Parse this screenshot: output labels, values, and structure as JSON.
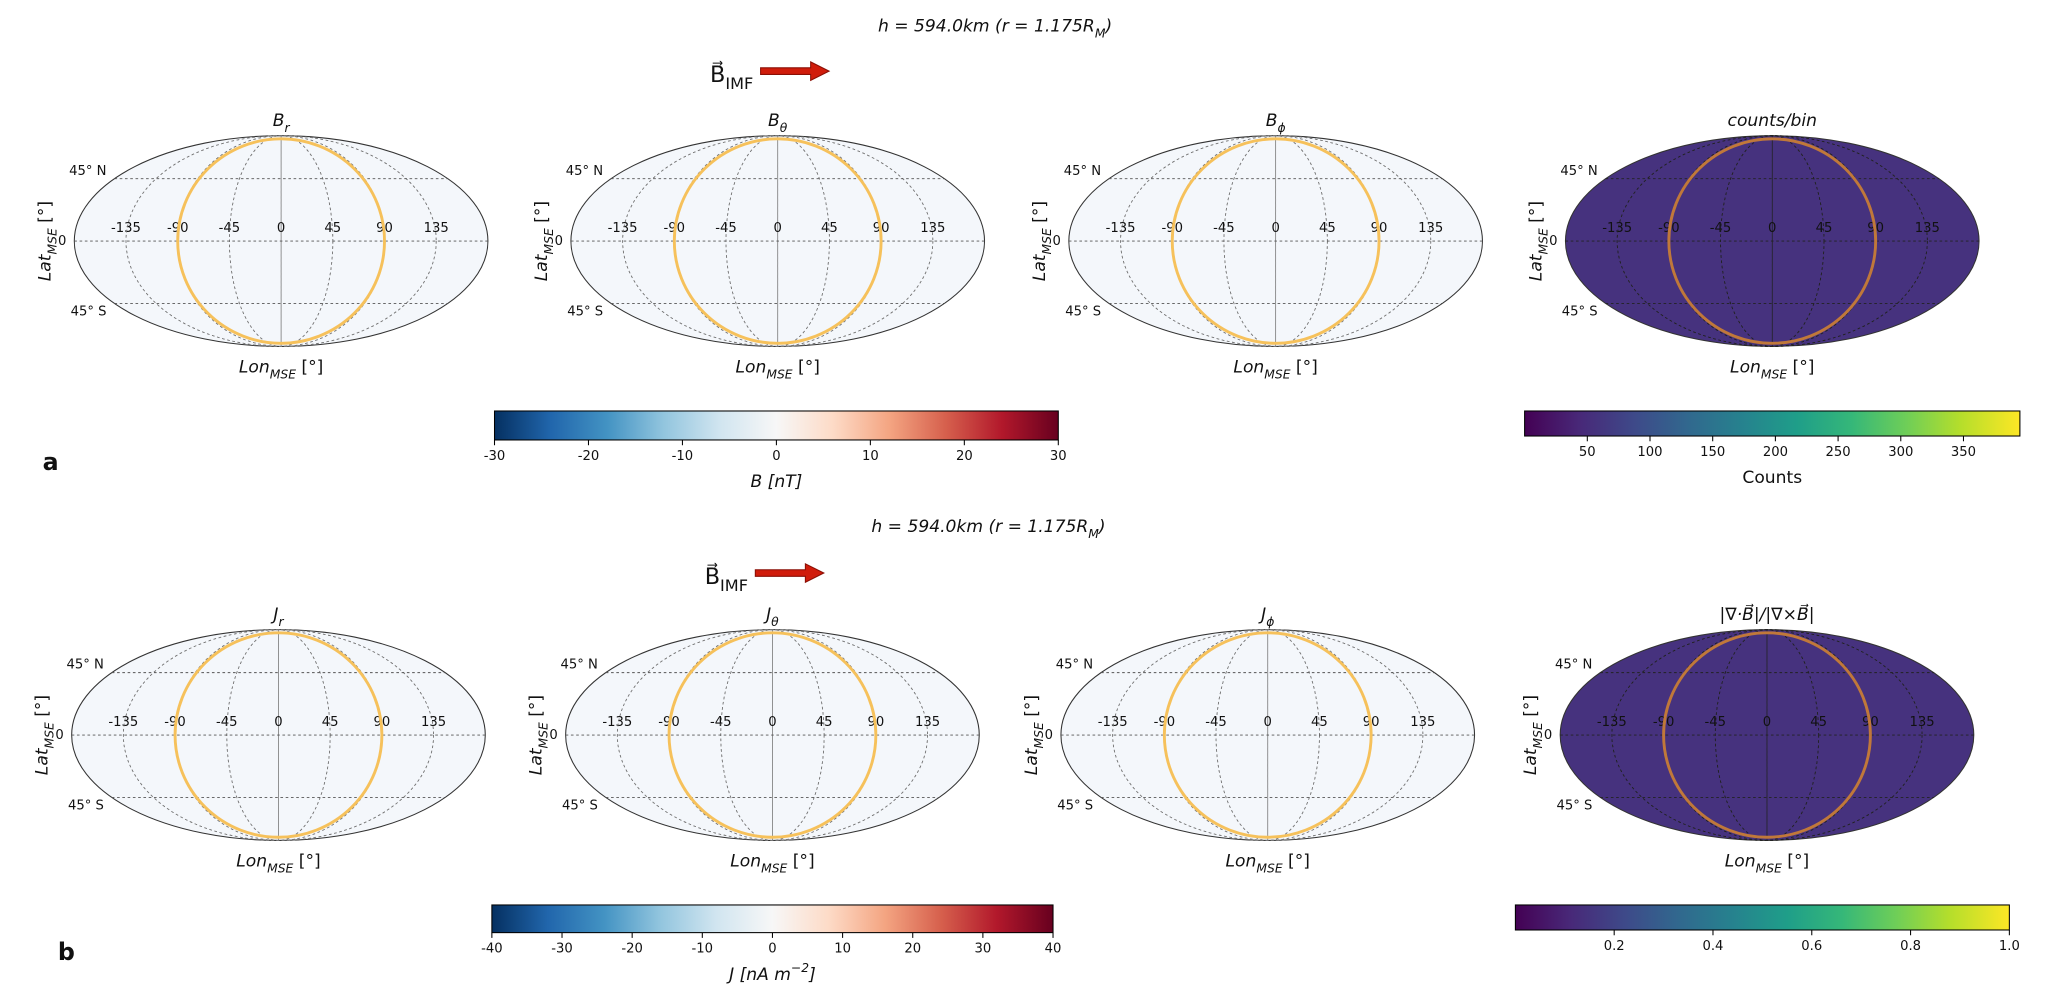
{
  "figure": {
    "rows": [
      {
        "label": "a",
        "heading": {
          "base": "h = 594.0km (r = 1.175R",
          "sub": "M",
          "tail": ")"
        },
        "imf": {
          "base": "B⃗",
          "sub": "IMF"
        },
        "panels": [
          {
            "title": {
              "base": "B",
              "sub": "r"
            },
            "colormap": "RdBu_r"
          },
          {
            "title": {
              "base": "B",
              "sub": "θ"
            },
            "colormap": "RdBu_r"
          },
          {
            "title": {
              "base": "B",
              "sub": "ϕ"
            },
            "colormap": "RdBu_r"
          },
          {
            "title": {
              "base": "counts/bin"
            },
            "colormap": "viridis"
          }
        ],
        "colorbars": [
          {
            "colormap": "RdBu_r",
            "lim": [
              -30,
              30
            ],
            "ticks": [
              -30,
              -20,
              -10,
              0,
              10,
              20,
              30
            ],
            "label": {
              "base": "B [nT]"
            }
          },
          {
            "colormap": "viridis",
            "lim": [
              0,
              395
            ],
            "ticks": [
              50,
              100,
              150,
              200,
              250,
              300,
              350
            ],
            "label": {
              "base": "Counts"
            }
          }
        ]
      },
      {
        "label": "b",
        "heading": {
          "base": "h = 594.0km (r = 1.175R",
          "sub": "M",
          "tail": ")"
        },
        "imf": {
          "base": "B⃗",
          "sub": "IMF"
        },
        "panels": [
          {
            "title": {
              "base": "J",
              "sub": "r"
            },
            "colormap": "RdBu_r"
          },
          {
            "title": {
              "base": "J",
              "sub": "θ"
            },
            "colormap": "RdBu_r"
          },
          {
            "title": {
              "base": "J",
              "sub": "ϕ"
            },
            "colormap": "RdBu_r"
          },
          {
            "title": {
              "base": "|∇·B⃗|/|∇×B⃗|"
            },
            "colormap": "viridis"
          }
        ],
        "colorbars": [
          {
            "colormap": "RdBu_r",
            "lim": [
              -40,
              40
            ],
            "ticks": [
              -40,
              -30,
              -20,
              -10,
              0,
              10,
              20,
              30,
              40
            ],
            "label": {
              "base": "J [nA m",
              "sup": "−2",
              "tail": "]"
            }
          },
          {
            "colormap": "viridis",
            "lim": [
              0,
              1
            ],
            "ticks": [
              0.2,
              0.4,
              0.6,
              0.8,
              {
                "value": 1,
                "label": "1.0"
              }
            ],
            "label": {
              "base": ""
            }
          }
        ]
      }
    ],
    "map_axes": {
      "xlabel": {
        "base": "Lon",
        "sub": "MSE",
        "tail": " [°]"
      },
      "ylabel": {
        "base": "Lat",
        "sub": "MSE",
        "tail": " [°]"
      },
      "lat_ticks": [
        {
          "value": 45,
          "label": "45° N"
        },
        0,
        {
          "value": -45,
          "label": "45° S"
        }
      ],
      "lon_ticks": [
        -135,
        -90,
        -45,
        0,
        45,
        90,
        135
      ]
    }
  }
}
